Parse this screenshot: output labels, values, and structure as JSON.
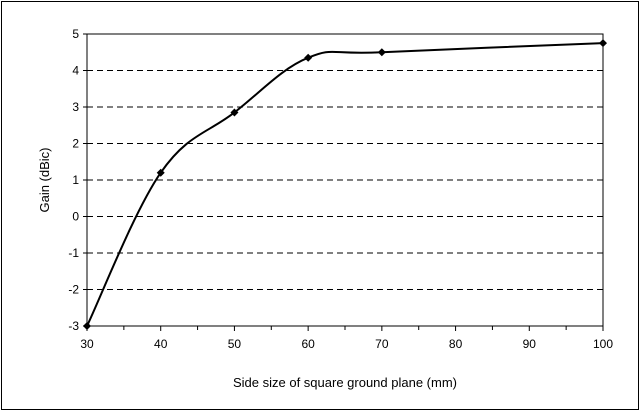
{
  "chart_data": {
    "type": "line",
    "xlabel": "Side size of square ground plane (mm)",
    "ylabel": "Gain (dBic)",
    "categories": [
      "30",
      "40",
      "50",
      "60",
      "70",
      "80",
      "90",
      "100"
    ],
    "ylim": [
      -3,
      5
    ],
    "yticks": [
      -3,
      -2,
      -1,
      0,
      1,
      2,
      3,
      4,
      5
    ],
    "grid": "horizontal dashed",
    "series": [
      {
        "points": [
          {
            "x": "30",
            "y": -3.0
          },
          {
            "x": "40",
            "y": 1.2
          },
          {
            "x": "50",
            "y": 2.85
          },
          {
            "x": "60",
            "y": 4.35
          },
          {
            "x": "70",
            "y": 4.5
          },
          {
            "x": "100",
            "y": 4.75
          }
        ],
        "color": "#000000",
        "marker": "diamond"
      }
    ]
  }
}
